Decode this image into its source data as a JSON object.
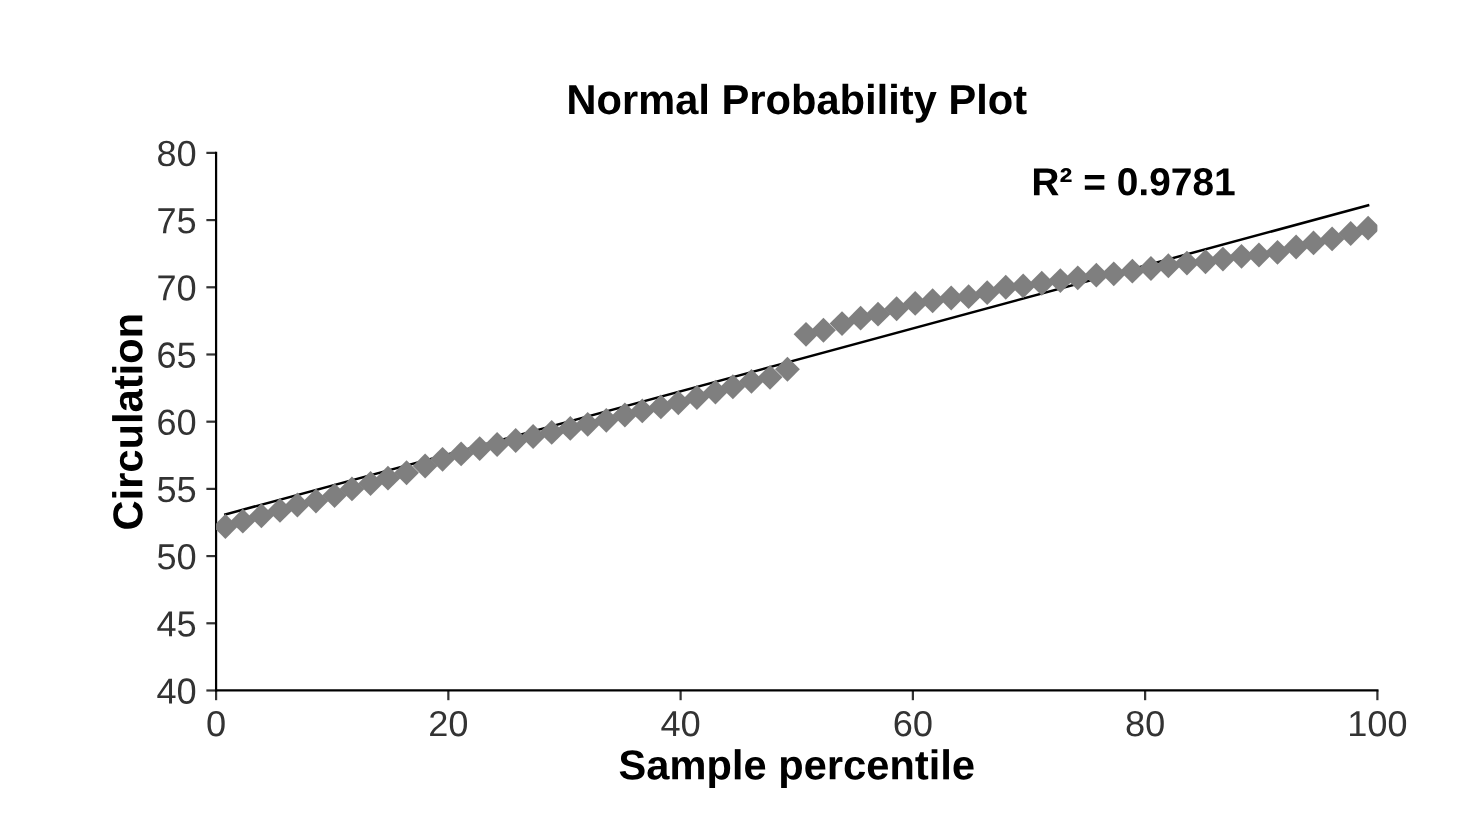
{
  "chart_data": {
    "type": "scatter",
    "title": "Normal Probability Plot",
    "xlabel": "Sample percentile",
    "ylabel": "Circulation",
    "annotations": [
      "R² = 0.9781"
    ],
    "series": [
      {
        "color": "#7f7f7f",
        "marker": "diamond",
        "x": [
          0.8,
          2.3,
          3.9,
          5.5,
          7.0,
          8.6,
          10.2,
          11.7,
          13.3,
          14.8,
          16.4,
          18.0,
          19.5,
          21.1,
          22.7,
          24.2,
          25.8,
          27.3,
          28.9,
          30.5,
          32.0,
          33.6,
          35.2,
          36.7,
          38.3,
          39.8,
          41.4,
          43.0,
          44.5,
          46.1,
          47.7,
          49.2,
          50.8,
          52.3,
          53.9,
          55.5,
          57.0,
          58.6,
          60.2,
          61.7,
          63.3,
          64.8,
          66.4,
          68.0,
          69.5,
          71.1,
          72.7,
          74.2,
          75.8,
          77.3,
          78.9,
          80.5,
          82.0,
          83.6,
          85.2,
          86.7,
          88.3,
          89.8,
          91.4,
          93.0,
          94.5,
          96.1,
          97.7,
          99.2
        ],
        "values": [
          52.2,
          52.6,
          53.0,
          53.4,
          53.8,
          54.1,
          54.5,
          55.0,
          55.4,
          55.8,
          56.2,
          56.7,
          57.2,
          57.6,
          58.0,
          58.3,
          58.6,
          58.9,
          59.2,
          59.5,
          59.8,
          60.1,
          60.5,
          60.8,
          61.1,
          61.4,
          61.8,
          62.2,
          62.6,
          63.0,
          63.3,
          63.9,
          66.5,
          66.8,
          67.3,
          67.7,
          68.0,
          68.4,
          68.8,
          69.0,
          69.2,
          69.3,
          69.6,
          70.0,
          70.1,
          70.3,
          70.5,
          70.7,
          70.9,
          71.0,
          71.2,
          71.4,
          71.6,
          71.8,
          71.9,
          72.1,
          72.3,
          72.4,
          72.6,
          73.0,
          73.3,
          73.6,
          74.0,
          74.4
        ]
      },
      {
        "type": "line",
        "color": "#000000",
        "x": [
          0.8,
          99.2
        ],
        "values": [
          53.1,
          76.1
        ]
      }
    ],
    "xlim": [
      0,
      100
    ],
    "xticks": [
      0,
      20,
      40,
      60,
      80,
      100
    ],
    "ylim": [
      40,
      80
    ],
    "yticks": [
      40,
      45,
      50,
      55,
      60,
      65,
      70,
      75,
      80
    ],
    "grid": false,
    "legend": false
  }
}
